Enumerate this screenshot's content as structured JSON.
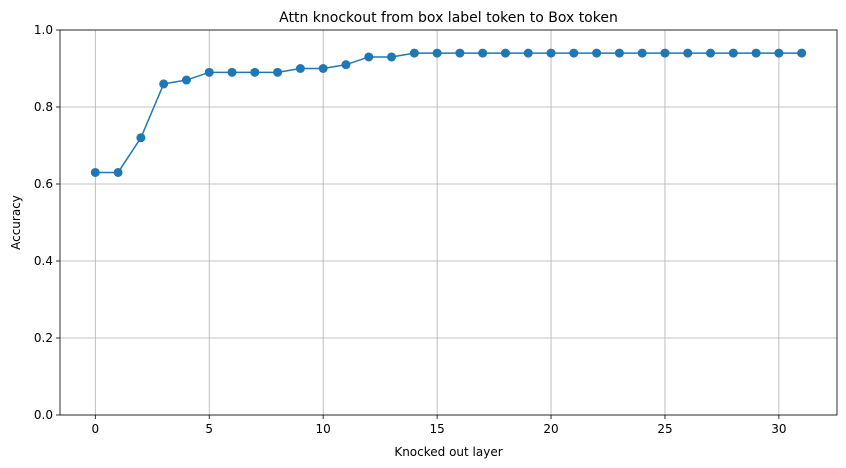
{
  "chart_data": {
    "type": "line",
    "title": "Attn knockout from box label token to Box token",
    "xlabel": "Knocked out layer",
    "ylabel": "Accuracy",
    "xlim": [
      -1.55,
      32.55
    ],
    "ylim": [
      0.0,
      1.0
    ],
    "xticks": [
      0,
      5,
      10,
      15,
      20,
      25,
      30
    ],
    "yticks": [
      0.0,
      0.2,
      0.4,
      0.6,
      0.8,
      1.0
    ],
    "xtick_labels": [
      "0",
      "5",
      "10",
      "15",
      "20",
      "25",
      "30"
    ],
    "ytick_labels": [
      "0.0",
      "0.2",
      "0.4",
      "0.6",
      "0.8",
      "1.0"
    ],
    "grid": true,
    "marker": "circle",
    "color": "#1f77b4",
    "series": [
      {
        "x": [
          0,
          1,
          2,
          3,
          4,
          5,
          6,
          7,
          8,
          9,
          10,
          11,
          12,
          13,
          14,
          15,
          16,
          17,
          18,
          19,
          20,
          21,
          22,
          23,
          24,
          25,
          26,
          27,
          28,
          29,
          30,
          31
        ],
        "values": [
          0.63,
          0.63,
          0.72,
          0.86,
          0.87,
          0.89,
          0.89,
          0.89,
          0.89,
          0.9,
          0.9,
          0.91,
          0.93,
          0.93,
          0.94,
          0.94,
          0.94,
          0.94,
          0.94,
          0.94,
          0.94,
          0.94,
          0.94,
          0.94,
          0.94,
          0.94,
          0.94,
          0.94,
          0.94,
          0.94,
          0.94,
          0.94
        ]
      }
    ]
  }
}
